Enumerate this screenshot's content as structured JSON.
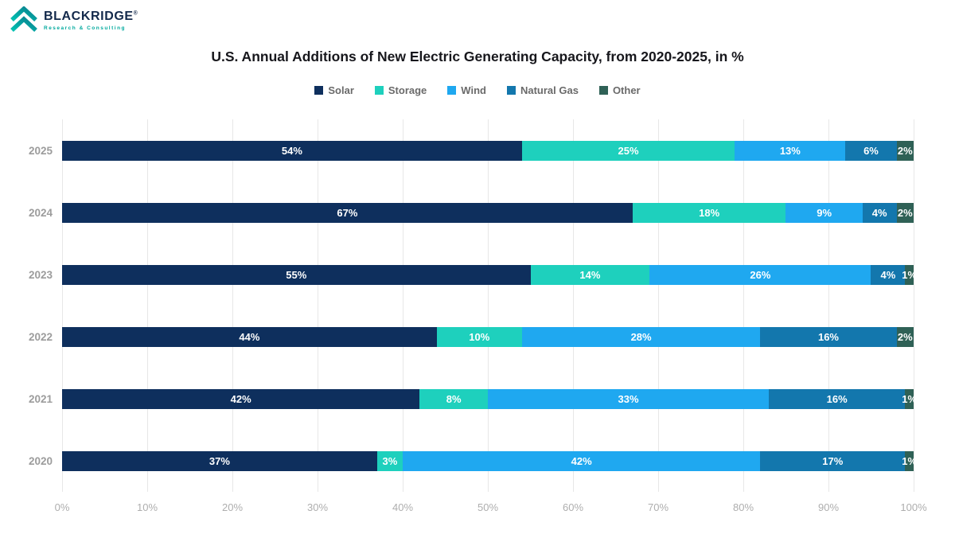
{
  "brand": {
    "name": "BLACKRIDGE",
    "registered": "®",
    "subtitle": "Research & Consulting",
    "accent_color": "#00a99d",
    "name_color": "#13294b"
  },
  "chart_data": {
    "type": "bar",
    "orientation": "horizontal",
    "stacked": true,
    "title": "U.S. Annual Additions of New Electric Generating Capacity, from 2020-2025, in %",
    "categories": [
      "2025",
      "2024",
      "2023",
      "2022",
      "2021",
      "2020"
    ],
    "series": [
      {
        "name": "Solar",
        "color": "#0e2f5d",
        "values": [
          54,
          67,
          55,
          44,
          42,
          37
        ]
      },
      {
        "name": "Storage",
        "color": "#1ed0bd",
        "values": [
          25,
          18,
          14,
          10,
          8,
          3
        ]
      },
      {
        "name": "Wind",
        "color": "#1fa8f0",
        "values": [
          13,
          9,
          26,
          28,
          33,
          42
        ]
      },
      {
        "name": "Natural Gas",
        "color": "#1377ad",
        "values": [
          6,
          4,
          4,
          16,
          16,
          17
        ]
      },
      {
        "name": "Other",
        "color": "#2f6156",
        "values": [
          2,
          2,
          1,
          2,
          1,
          1
        ]
      }
    ],
    "xlabel": "",
    "ylabel": "",
    "xlim": [
      0,
      100
    ],
    "x_ticks": [
      "0%",
      "10%",
      "20%",
      "30%",
      "40%",
      "50%",
      "60%",
      "70%",
      "80%",
      "90%",
      "100%"
    ],
    "grid": true,
    "legend_position": "top",
    "value_label_format": "percent"
  }
}
